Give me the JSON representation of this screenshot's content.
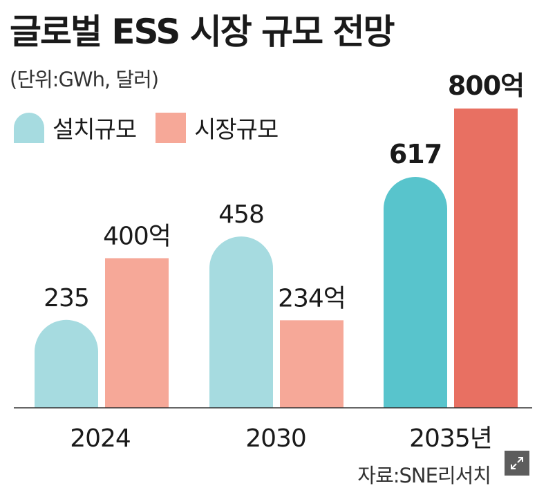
{
  "title": "글로벌 ESS 시장 규모 전망",
  "unit": "(단위:GWh, 달러)",
  "source": "자료:SNE리서치",
  "chart_data": {
    "type": "bar",
    "categories": [
      "2024",
      "2030",
      "2035년"
    ],
    "series": [
      {
        "name": "설치규모",
        "values": [
          235,
          458,
          617
        ],
        "labels": [
          "235",
          "458",
          "617"
        ],
        "color": "#a6dbe0",
        "highlight_color": "#58c4cc"
      },
      {
        "name": "시장규모",
        "values": [
          400,
          234,
          800
        ],
        "labels": [
          "400억",
          "234억",
          "800억"
        ],
        "color": "#f6a898",
        "highlight_color": "#e87062"
      }
    ],
    "highlight_category_index": 2,
    "xlabel": "",
    "ylabel": "",
    "ylim": [
      0,
      800
    ],
    "grid": false,
    "legend": "top-left"
  },
  "icons": {
    "expand": "expand-icon"
  }
}
